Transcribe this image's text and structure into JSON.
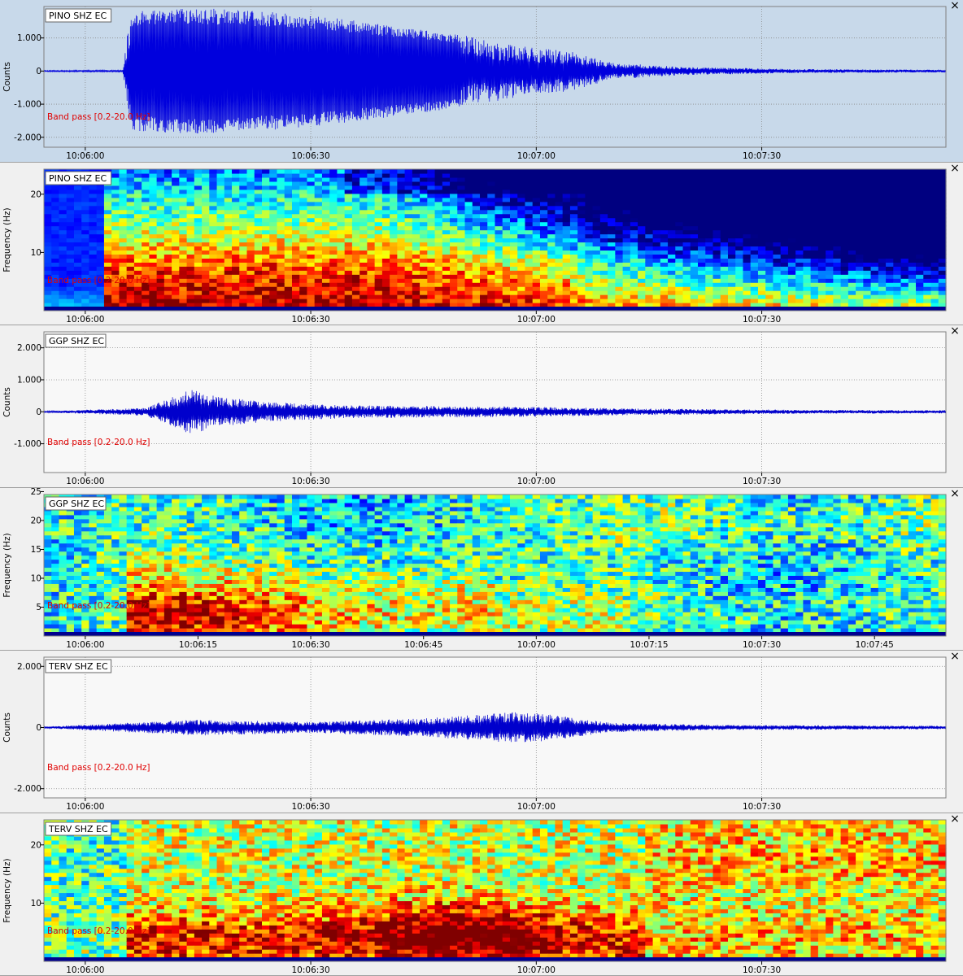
{
  "panels": [
    {
      "id": "pino-wave",
      "kind": "waveform",
      "active": true,
      "station_label": "PINO SHZ EC",
      "filter_label": "Band pass [0.2-20.0 Hz]",
      "close_label": "×",
      "ylabel": "Counts",
      "yticks": [
        {
          "value": 1000,
          "label": "1.000"
        },
        {
          "value": 0,
          "label": "0"
        },
        {
          "value": -1000,
          "label": "-1.000"
        },
        {
          "value": -2000,
          "label": "-2.000"
        }
      ],
      "ylim": [
        -2300,
        1950
      ],
      "xticks": [
        {
          "t": 5,
          "label": "10:06:00"
        },
        {
          "t": 35,
          "label": "10:06:30"
        },
        {
          "t": 65,
          "label": "10:07:00"
        },
        {
          "t": 95,
          "label": "10:07:30"
        }
      ],
      "xlim": [
        -0.5,
        119.5
      ],
      "trace_color": "#0000dd"
    },
    {
      "id": "pino-spec",
      "kind": "spectrogram",
      "station_label": "PINO SHZ EC",
      "filter_label": "Band pass [0.2-20.0 Hz]",
      "close_label": "×",
      "ylabel": "Frequency (Hz)",
      "yticks": [
        {
          "value": 10,
          "label": "10"
        },
        {
          "value": 20,
          "label": "20"
        }
      ],
      "ylim": [
        0,
        24.3
      ],
      "xticks": [
        {
          "t": 5,
          "label": "10:06:00"
        },
        {
          "t": 35,
          "label": "10:06:30"
        },
        {
          "t": 65,
          "label": "10:07:00"
        },
        {
          "t": 95,
          "label": "10:07:30"
        }
      ],
      "xlim": [
        -0.5,
        119.5
      ]
    },
    {
      "id": "ggp-wave",
      "kind": "waveform",
      "station_label": "GGP SHZ EC",
      "filter_label": "Band pass [0.2-20.0 Hz]",
      "close_label": "×",
      "ylabel": "Counts",
      "yticks": [
        {
          "value": 2000,
          "label": "2.000"
        },
        {
          "value": 1000,
          "label": "1.000"
        },
        {
          "value": 0,
          "label": "0"
        },
        {
          "value": -1000,
          "label": "-1.000"
        }
      ],
      "ylim": [
        -1900,
        2500
      ],
      "xticks": [
        {
          "t": 5,
          "label": "10:06:00"
        },
        {
          "t": 35,
          "label": "10:06:30"
        },
        {
          "t": 65,
          "label": "10:07:00"
        },
        {
          "t": 95,
          "label": "10:07:30"
        }
      ],
      "xlim": [
        -0.5,
        119.5
      ],
      "trace_color": "#0000cc"
    },
    {
      "id": "ggp-spec",
      "kind": "spectrogram",
      "station_label": "GGP SHZ EC",
      "filter_label": "Band pass [0.2-20.0 Hz]",
      "close_label": "×",
      "ylabel": "Frequency (Hz)",
      "yticks": [
        {
          "value": 5,
          "label": "5"
        },
        {
          "value": 10,
          "label": "10"
        },
        {
          "value": 15,
          "label": "15"
        },
        {
          "value": 20,
          "label": "20"
        },
        {
          "value": 25,
          "label": "25"
        }
      ],
      "ylim": [
        0,
        24.5
      ],
      "xticks": [
        {
          "t": 5,
          "label": "10:06:00"
        },
        {
          "t": 20,
          "label": "10:06:15"
        },
        {
          "t": 35,
          "label": "10:06:30"
        },
        {
          "t": 50,
          "label": "10:06:45"
        },
        {
          "t": 65,
          "label": "10:07:00"
        },
        {
          "t": 80,
          "label": "10:07:15"
        },
        {
          "t": 95,
          "label": "10:07:30"
        },
        {
          "t": 110,
          "label": "10:07:45"
        }
      ],
      "xlim": [
        -0.5,
        119.5
      ]
    },
    {
      "id": "terv-wave",
      "kind": "waveform",
      "station_label": "TERV SHZ EC",
      "filter_label": "Band pass [0.2-20.0 Hz]",
      "close_label": "×",
      "ylabel": "Counts",
      "yticks": [
        {
          "value": 2000,
          "label": "2.000"
        },
        {
          "value": 0,
          "label": "0"
        },
        {
          "value": -2000,
          "label": "-2.000"
        }
      ],
      "ylim": [
        -2300,
        2300
      ],
      "xticks": [
        {
          "t": 5,
          "label": "10:06:00"
        },
        {
          "t": 35,
          "label": "10:06:30"
        },
        {
          "t": 65,
          "label": "10:07:00"
        },
        {
          "t": 95,
          "label": "10:07:30"
        }
      ],
      "xlim": [
        -0.5,
        119.5
      ],
      "trace_color": "#0000cc"
    },
    {
      "id": "terv-spec",
      "kind": "spectrogram",
      "station_label": "TERV SHZ EC",
      "filter_label": "Band pass [0.2-20.0 Hz]",
      "close_label": "×",
      "ylabel": "Frequency (Hz)",
      "yticks": [
        {
          "value": 10,
          "label": "10"
        },
        {
          "value": 20,
          "label": "20"
        }
      ],
      "ylim": [
        0,
        24.3
      ],
      "xticks": [
        {
          "t": 5,
          "label": "10:06:00"
        },
        {
          "t": 35,
          "label": "10:06:30"
        },
        {
          "t": 65,
          "label": "10:07:00"
        },
        {
          "t": 95,
          "label": "10:07:30"
        }
      ],
      "xlim": [
        -0.5,
        119.5
      ]
    }
  ],
  "chart_data": [
    {
      "type": "line",
      "station": "PINO SHZ EC",
      "ylabel": "Counts",
      "ylim": [
        -2300,
        1950
      ],
      "x_labels": [
        "10:06:00",
        "10:06:30",
        "10:07:00",
        "10:07:30"
      ],
      "series": [
        {
          "name": "PINO SHZ EC",
          "t_s": [
            0,
            10,
            11,
            20,
            25,
            35,
            45,
            55,
            65,
            70,
            75,
            85,
            100,
            119
          ],
          "amplitude": [
            20,
            30,
            1800,
            1900,
            1850,
            1700,
            1400,
            1100,
            700,
            600,
            250,
            120,
            60,
            40
          ]
        }
      ]
    },
    {
      "type": "heatmap",
      "station": "PINO SHZ EC",
      "ylabel": "Frequency (Hz)",
      "ylim": [
        0,
        24.3
      ],
      "x_labels": [
        "10:06:00",
        "10:06:30",
        "10:07:00",
        "10:07:30"
      ]
    },
    {
      "type": "line",
      "station": "GGP SHZ EC",
      "ylabel": "Counts",
      "ylim": [
        -1900,
        2500
      ],
      "x_labels": [
        "10:06:00",
        "10:06:30",
        "10:07:00",
        "10:07:30"
      ],
      "series": [
        {
          "name": "GGP SHZ EC",
          "t_s": [
            0,
            13,
            19,
            23,
            30,
            40,
            60,
            80,
            100,
            119
          ],
          "amplitude": [
            25,
            120,
            700,
            450,
            300,
            200,
            170,
            100,
            60,
            50
          ]
        }
      ]
    },
    {
      "type": "heatmap",
      "station": "GGP SHZ EC",
      "ylabel": "Frequency (Hz)",
      "ylim": [
        0,
        24.5
      ],
      "x_labels": [
        "10:06:00",
        "10:06:15",
        "10:06:30",
        "10:06:45",
        "10:07:00",
        "10:07:15",
        "10:07:30",
        "10:07:45"
      ]
    },
    {
      "type": "line",
      "station": "TERV SHZ EC",
      "ylabel": "Counts",
      "ylim": [
        -2300,
        2300
      ],
      "x_labels": [
        "10:06:00",
        "10:06:30",
        "10:07:00",
        "10:07:30"
      ],
      "series": [
        {
          "name": "TERV SHZ EC",
          "t_s": [
            0,
            13,
            20,
            35,
            50,
            62,
            66,
            75,
            90,
            119
          ],
          "amplitude": [
            30,
            180,
            260,
            180,
            300,
            500,
            450,
            150,
            80,
            60
          ]
        }
      ]
    },
    {
      "type": "heatmap",
      "station": "TERV SHZ EC",
      "ylabel": "Frequency (Hz)",
      "ylim": [
        0,
        24.3
      ],
      "x_labels": [
        "10:06:00",
        "10:06:30",
        "10:07:00",
        "10:07:30"
      ]
    }
  ]
}
